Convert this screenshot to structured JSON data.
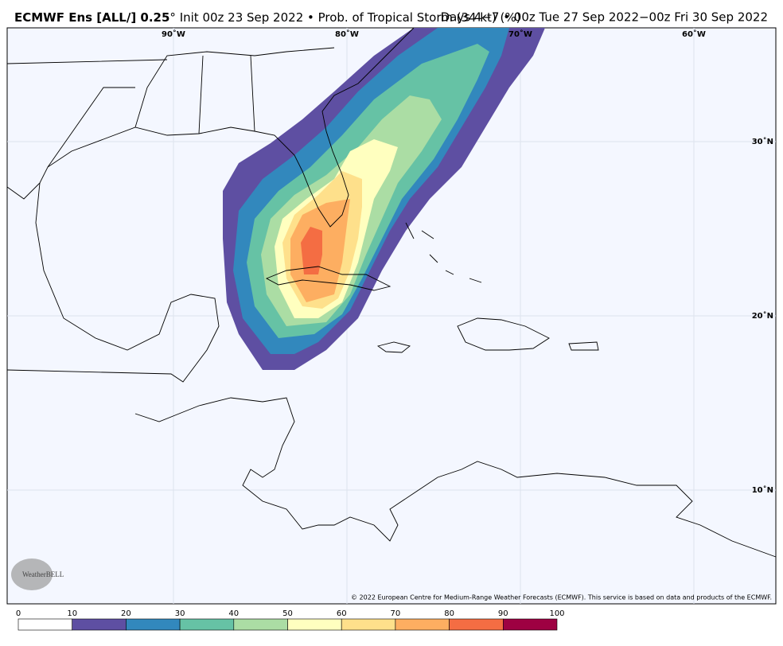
{
  "header": {
    "title_bold": "ECMWF Ens [ALL/] 0.25",
    "title_rest": "° Init 00z 23 Sep 2022 • Prob. of Tropical Storm (34 kt) (%)",
    "valid": "Days 4−7 • 00z Tue 27 Sep 2022−00z Fri 30 Sep 2022"
  },
  "map": {
    "lon_labels": [
      "90˚W",
      "80˚W",
      "70˚W",
      "60˚W"
    ],
    "lat_labels": [
      "30˚N",
      "20˚N",
      "10˚N"
    ],
    "logo": "WeatherBELL",
    "copyright": "© 2022 European Centre for Medium-Range Weather Forecasts (ECMWF). This service is based on data and products of the ECMWF."
  },
  "colorbar": {
    "levels": [
      0,
      10,
      20,
      30,
      40,
      50,
      60,
      70,
      80,
      90,
      100
    ],
    "colors": [
      "#ffffff",
      "#5e4fa2",
      "#3288bd",
      "#66c2a5",
      "#abdda4",
      "#ffffbf",
      "#fee08b",
      "#fdae61",
      "#f46d43",
      "#9e0142"
    ]
  }
}
